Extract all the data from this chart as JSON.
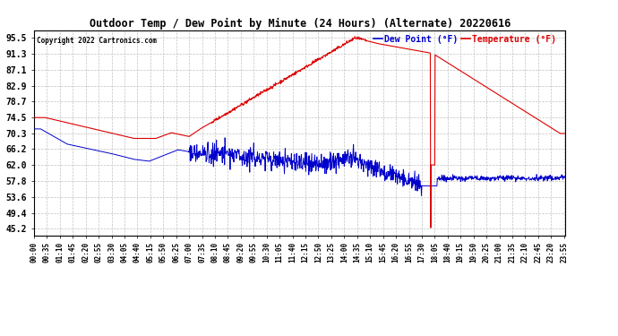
{
  "title": "Outdoor Temp / Dew Point by Minute (24 Hours) (Alternate) 20220616",
  "copyright": "Copyright 2022 Cartronics.com",
  "legend_dew": "Dew Point (°F)",
  "legend_temp": "Temperature (°F)",
  "yticks": [
    45.2,
    49.4,
    53.6,
    57.8,
    62.0,
    66.2,
    70.3,
    74.5,
    78.7,
    82.9,
    87.1,
    91.3,
    95.5
  ],
  "ylim": [
    43.5,
    97.5
  ],
  "bg_color": "#ffffff",
  "plot_bg_color": "#ffffff",
  "grid_color": "#bbbbbb",
  "temp_color": "#dd0000",
  "dew_color": "#0000cc",
  "title_color": "#000000",
  "copyright_color": "#000000",
  "x_tick_interval_minutes": 35,
  "total_minutes": 1440
}
